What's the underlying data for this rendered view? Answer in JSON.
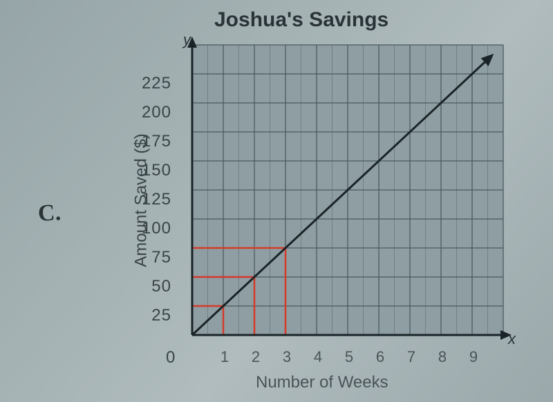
{
  "option_letter": "C.",
  "chart": {
    "type": "line",
    "title": "Joshua's Savings",
    "xlabel": "Number of Weeks",
    "ylabel": "Amount Saved ($)",
    "x_symbol": "x",
    "y_symbol": "y",
    "origin_label": "0",
    "xlim": [
      0,
      10
    ],
    "ylim": [
      0,
      250
    ],
    "x_ticks": [
      1,
      2,
      3,
      4,
      5,
      6,
      7,
      8,
      9
    ],
    "y_ticks": [
      25,
      50,
      75,
      100,
      125,
      150,
      175,
      200,
      225
    ],
    "x_minor_step": 0.5,
    "y_minor_step": 25,
    "grid_color": "#4a5a60",
    "minor_grid_color": "#6a787c",
    "axis_color": "#1a2428",
    "line_color": "#1a2428",
    "line_width": 3,
    "background_color": "#8f9ea2",
    "plot_background": "#8f9ea2",
    "highlight_color": "#d43a2a",
    "highlight_width": 2.5,
    "title_fontsize": 30,
    "label_fontsize": 24,
    "tick_fontsize": 24,
    "line_points": [
      [
        0,
        0
      ],
      [
        9.5,
        237.5
      ]
    ],
    "highlight_segments": [
      {
        "from": [
          0,
          25
        ],
        "to": [
          1,
          25
        ]
      },
      {
        "from": [
          1,
          0
        ],
        "to": [
          1,
          25
        ]
      },
      {
        "from": [
          0,
          50
        ],
        "to": [
          2,
          50
        ]
      },
      {
        "from": [
          2,
          0
        ],
        "to": [
          2,
          50
        ]
      },
      {
        "from": [
          0,
          75
        ],
        "to": [
          3,
          75
        ]
      },
      {
        "from": [
          3,
          0
        ],
        "to": [
          3,
          75
        ]
      }
    ],
    "arrow_start": "y-axis",
    "arrow_end": "x-axis"
  }
}
